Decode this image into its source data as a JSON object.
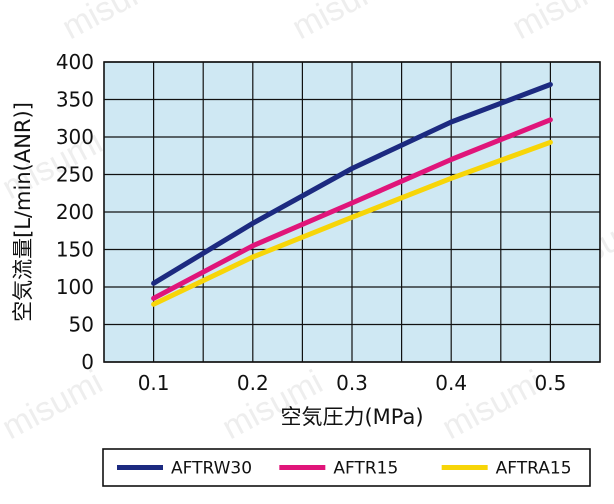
{
  "chart_data": {
    "type": "line",
    "xlabel": "空気圧力(MPa)",
    "ylabel": "空気流量[L/min(ANR)]",
    "xlim": [
      0.05,
      0.55
    ],
    "ylim": [
      0,
      400
    ],
    "x_ticks": [
      "0.1",
      "0.2",
      "0.3",
      "0.4",
      "0.5"
    ],
    "y_ticks": [
      "0",
      "50",
      "100",
      "150",
      "200",
      "250",
      "300",
      "350",
      "400"
    ],
    "grid": true,
    "legend_position": "bottom",
    "plot_background": "#cfe8f3",
    "series": [
      {
        "name": "AFTRW30",
        "color": "#1c2a80",
        "points": [
          [
            0.1,
            105
          ],
          [
            0.2,
            185
          ],
          [
            0.3,
            258
          ],
          [
            0.4,
            320
          ],
          [
            0.5,
            370
          ]
        ]
      },
      {
        "name": "AFTR15",
        "color": "#e0157a",
        "points": [
          [
            0.1,
            85
          ],
          [
            0.2,
            155
          ],
          [
            0.3,
            212
          ],
          [
            0.4,
            270
          ],
          [
            0.5,
            323
          ]
        ]
      },
      {
        "name": "AFTRA15",
        "color": "#f7d508",
        "points": [
          [
            0.1,
            77
          ],
          [
            0.2,
            140
          ],
          [
            0.3,
            193
          ],
          [
            0.4,
            245
          ],
          [
            0.5,
            293
          ]
        ]
      }
    ]
  },
  "watermark": "misumi"
}
